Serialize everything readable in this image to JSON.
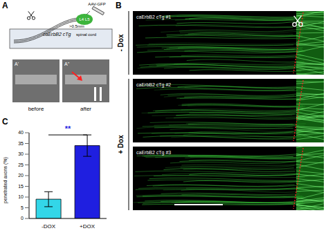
{
  "figure": {
    "panel_labels": [
      "A",
      "B",
      "C"
    ],
    "schematic": {
      "cord_label": "caErbB2 cTg",
      "cord_sublabel": "spinal cord",
      "injection": "AAV-GFP",
      "ganglia": [
        "L4",
        "L5"
      ],
      "distance": ">0.5mm"
    },
    "images": [
      {
        "label": "A'",
        "caption": "before"
      },
      {
        "label": "A''",
        "caption": "after"
      }
    ],
    "micrograph_groups": [
      {
        "label": "- Dox",
        "panels": [
          "caErbB2 cTg #1"
        ]
      },
      {
        "label": "+ Dox",
        "panels": [
          "caErbB2 cTg #2",
          "caErbB2 cTg #3"
        ]
      }
    ]
  },
  "chart_data": {
    "type": "bar",
    "categories": [
      "-DOX",
      "+DOX"
    ],
    "values": [
      9,
      34
    ],
    "errors": [
      3.5,
      5
    ],
    "colors": [
      "#33d6e8",
      "#1f1fe0"
    ],
    "ylabel": "penetrated axons (%)",
    "ylim": [
      0,
      40
    ],
    "yticks": [
      0,
      5,
      10,
      15,
      20,
      25,
      30,
      35,
      40
    ],
    "significance": {
      "label": "**",
      "y": 39
    }
  }
}
